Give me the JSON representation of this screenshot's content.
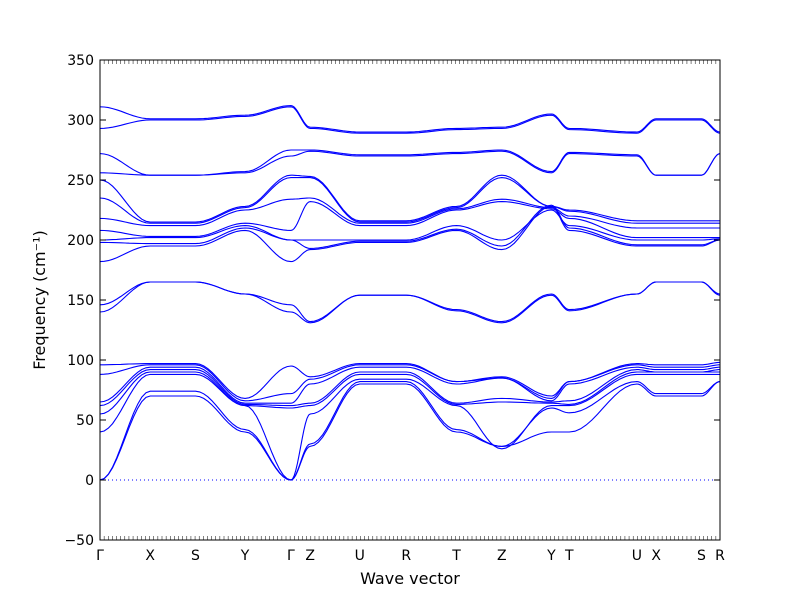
{
  "chart_data": {
    "type": "line",
    "xlabel": "Wave vector",
    "ylabel": "Frequency (cm⁻¹)",
    "ylim": [
      -50,
      350
    ],
    "yticks": [
      -50,
      0,
      50,
      100,
      150,
      200,
      250,
      300,
      350
    ],
    "x_points": [
      "Γ",
      "X",
      "S",
      "Y",
      "Γ",
      "Z",
      "U",
      "R",
      "T",
      "Z",
      "Y",
      "T",
      "U",
      "X",
      "S",
      "R"
    ],
    "x_point_positions": [
      0,
      0.081,
      0.154,
      0.234,
      0.308,
      0.339,
      0.419,
      0.494,
      0.575,
      0.648,
      0.728,
      0.757,
      0.866,
      0.897,
      0.97,
      1.0
    ],
    "zero_line": {
      "y": 0,
      "style": "dotted"
    },
    "line_color": "#0000ff",
    "series": [
      {
        "values": [
          0,
          70,
          70,
          40,
          0,
          28,
          80,
          80,
          40,
          28,
          40,
          40,
          80,
          70,
          70,
          82
        ]
      },
      {
        "values": [
          0,
          74,
          74,
          42,
          0,
          30,
          82,
          82,
          42,
          28,
          60,
          56,
          82,
          72,
          72,
          82
        ]
      },
      {
        "values": [
          40,
          88,
          88,
          62,
          0,
          55,
          84,
          84,
          62,
          26,
          62,
          62,
          88,
          88,
          88,
          88
        ]
      },
      {
        "values": [
          55,
          90,
          90,
          62,
          60,
          62,
          88,
          88,
          63,
          65,
          64,
          63,
          90,
          90,
          90,
          90
        ]
      },
      {
        "values": [
          62,
          92,
          92,
          63,
          62,
          64,
          90,
          90,
          64,
          68,
          65,
          66,
          92,
          90,
          90,
          92
        ]
      },
      {
        "values": [
          65,
          94,
          94,
          64,
          64,
          80,
          94,
          94,
          80,
          85,
          66,
          80,
          94,
          92,
          92,
          94
        ]
      },
      {
        "values": [
          88,
          96,
          96,
          66,
          72,
          84,
          96,
          96,
          82,
          85,
          68,
          82,
          96,
          94,
          94,
          96
        ]
      },
      {
        "values": [
          96,
          97,
          97,
          68,
          95,
          86,
          97,
          97,
          82,
          86,
          70,
          82,
          97,
          96,
          96,
          98
        ]
      },
      {
        "values": [
          140,
          165,
          165,
          155,
          140,
          131,
          154,
          154,
          141,
          131,
          154,
          141,
          155,
          165,
          165,
          154
        ]
      },
      {
        "values": [
          146,
          165,
          165,
          155,
          146,
          132,
          154,
          154,
          142,
          132,
          155,
          142,
          155,
          165,
          165,
          155
        ]
      },
      {
        "values": [
          182,
          195,
          195,
          208,
          182,
          192,
          198,
          198,
          208,
          192,
          228,
          208,
          195,
          195,
          195,
          200
        ]
      },
      {
        "values": [
          198,
          197,
          197,
          210,
          200,
          193,
          199,
          199,
          209,
          195,
          229,
          210,
          196,
          196,
          196,
          200
        ]
      },
      {
        "values": [
          200,
          202,
          202,
          212,
          200,
          200,
          200,
          200,
          212,
          200,
          225,
          212,
          200,
          200,
          200,
          201
        ]
      },
      {
        "values": [
          208,
          203,
          203,
          214,
          208,
          232,
          212,
          212,
          225,
          232,
          226,
          218,
          202,
          202,
          202,
          202
        ]
      },
      {
        "values": [
          218,
          212,
          212,
          225,
          234,
          235,
          214,
          214,
          226,
          234,
          227,
          220,
          210,
          210,
          210,
          210
        ]
      },
      {
        "values": [
          235,
          214,
          214,
          227,
          252,
          252,
          215,
          215,
          227,
          252,
          228,
          224,
          214,
          214,
          214,
          214
        ]
      },
      {
        "values": [
          250,
          215,
          215,
          228,
          254,
          253,
          216,
          216,
          228,
          254,
          228,
          225,
          216,
          216,
          216,
          216
        ]
      },
      {
        "values": [
          256,
          254,
          254,
          256,
          270,
          274,
          270,
          270,
          272,
          274,
          256,
          272,
          270,
          254,
          254,
          272
        ]
      },
      {
        "values": [
          272,
          254,
          254,
          257,
          275,
          275,
          271,
          271,
          273,
          275,
          257,
          273,
          271,
          254,
          254,
          272
        ]
      },
      {
        "values": [
          293,
          300,
          300,
          303,
          311,
          293,
          289,
          289,
          292,
          293,
          304,
          292,
          289,
          300,
          300,
          289
        ]
      },
      {
        "values": [
          311,
          301,
          301,
          304,
          312,
          294,
          290,
          290,
          293,
          294,
          305,
          293,
          290,
          301,
          301,
          290
        ]
      }
    ]
  }
}
